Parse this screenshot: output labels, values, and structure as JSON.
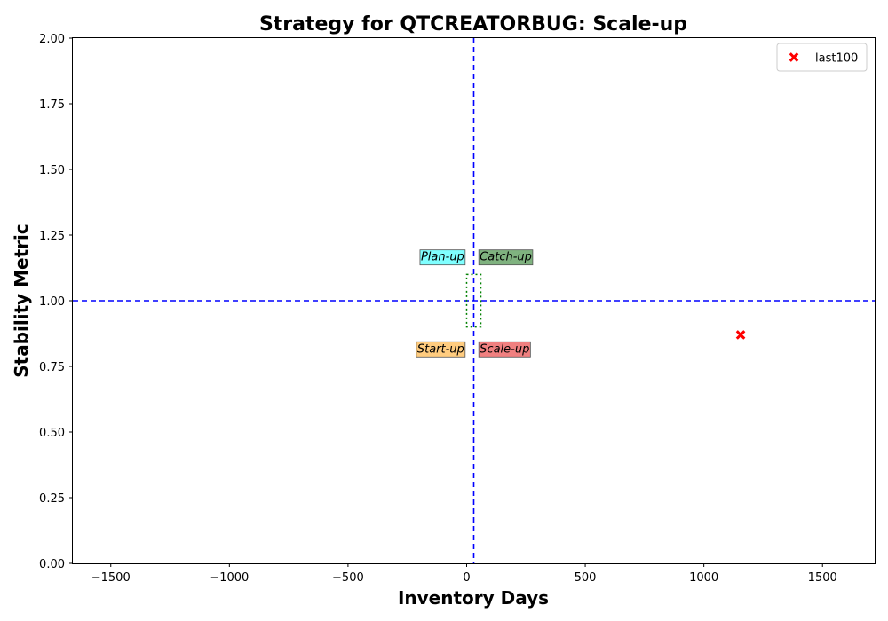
{
  "chart_data": {
    "type": "scatter",
    "title": "Strategy for QTCREATORBUG: Scale-up",
    "xlabel": "Inventory Days",
    "ylabel": "Stability Metric",
    "xlim": [
      -1660,
      1720
    ],
    "ylim": [
      0,
      2
    ],
    "x_ticks": [
      -1500,
      -1000,
      -500,
      0,
      500,
      1000,
      1500
    ],
    "x_tick_labels": [
      "−1500",
      "−1000",
      "−500",
      "0",
      "500",
      "1000",
      "1500"
    ],
    "y_ticks": [
      0,
      0.25,
      0.5,
      0.75,
      1.0,
      1.25,
      1.5,
      1.75,
      2.0
    ],
    "y_tick_labels": [
      "0.00",
      "0.25",
      "0.50",
      "0.75",
      "1.00",
      "1.25",
      "1.50",
      "1.75",
      "2.00"
    ],
    "reference_lines": {
      "x": 30,
      "y": 1.0,
      "color": "#0000ff",
      "style": "dashed"
    },
    "center_box": {
      "x": [
        0,
        60
      ],
      "y": [
        0.9,
        1.1
      ],
      "color": "#008000",
      "style": "dotted"
    },
    "quadrant_labels": [
      {
        "text": "Plan-up",
        "x": -10,
        "y": 1.17,
        "align": "right",
        "color": "#7fffff"
      },
      {
        "text": "Catch-up",
        "x": 55,
        "y": 1.17,
        "align": "left",
        "color": "#7fb27f"
      },
      {
        "text": "Start-up",
        "x": -10,
        "y": 0.82,
        "align": "right",
        "color": "#ffcc7f"
      },
      {
        "text": "Scale-up",
        "x": 55,
        "y": 0.82,
        "align": "left",
        "color": "#f08080"
      }
    ],
    "series": [
      {
        "name": "last100",
        "marker": "x",
        "color": "#ff0000",
        "points": [
          {
            "x": 1155,
            "y": 0.87
          }
        ]
      }
    ],
    "legend": {
      "placement": "top-right",
      "entries": [
        "last100"
      ]
    },
    "grid": false
  }
}
